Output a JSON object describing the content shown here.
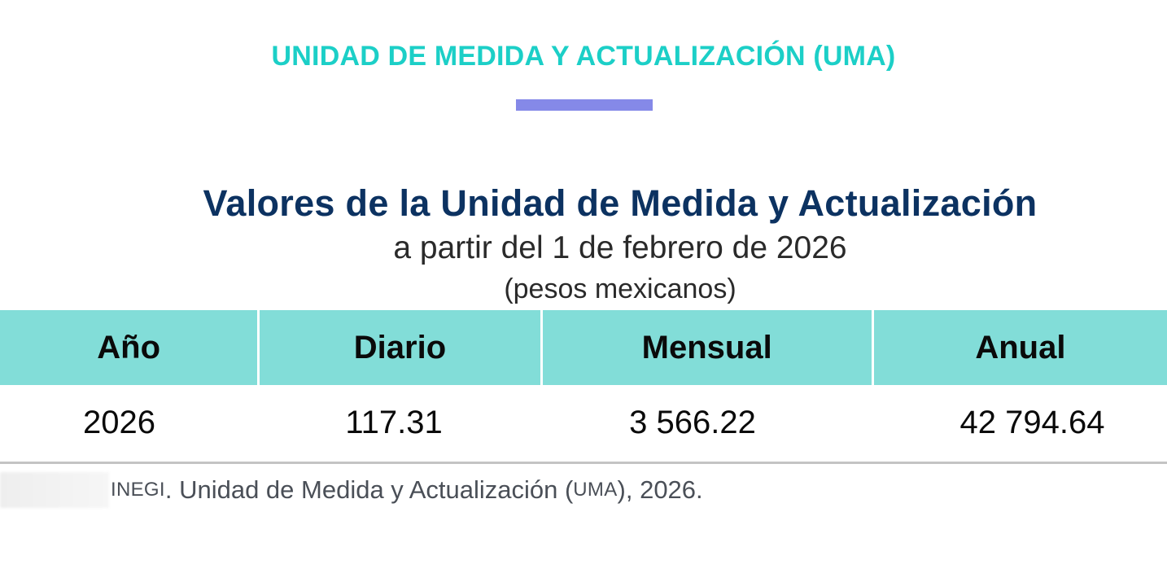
{
  "header": {
    "top_title": "UNIDAD DE MEDIDA Y ACTUALIZACIÓN (UMA)",
    "accent_color": "#8589e8",
    "title_color": "#1ccfc7"
  },
  "heading": {
    "title": "Valores de la Unidad de Medida y Actualización",
    "subtitle": "a partir del 1 de febrero de 2026",
    "unit_note": "(pesos mexicanos)",
    "title_color": "#0c3261"
  },
  "table": {
    "header_color": "#82ddd8",
    "columns": [
      "Año",
      "Diario",
      "Mensual",
      "Anual"
    ],
    "rows": [
      {
        "year": "2026",
        "daily": "117.31",
        "monthly": "3 566.22",
        "annual": "42 794.64"
      }
    ]
  },
  "source": {
    "label": "Fuente:",
    "org": "INEGI",
    "text_part1": ". Unidad de Medida y Actualización (",
    "abbr": "UMA",
    "text_part2": "), 2026."
  }
}
